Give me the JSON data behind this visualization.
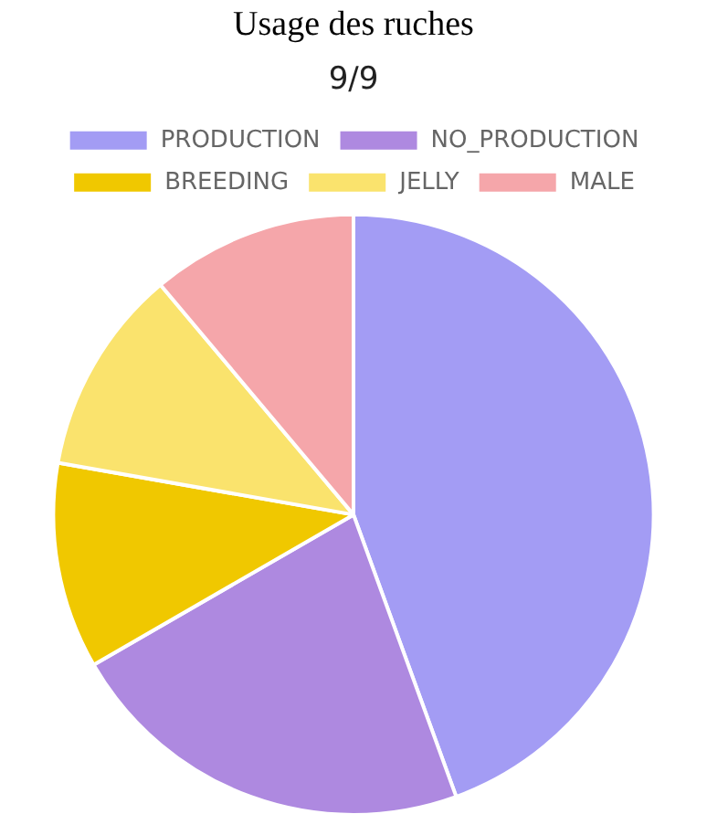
{
  "chart_data": {
    "type": "pie",
    "title": "Usage des ruches",
    "subtitle": "9/9",
    "categories": [
      "PRODUCTION",
      "NO_PRODUCTION",
      "BREEDING",
      "JELLY",
      "MALE"
    ],
    "values": [
      44.44,
      22.22,
      11.11,
      11.11,
      11.12
    ],
    "colors": [
      "#a39cf4",
      "#ae89e0",
      "#f0c800",
      "#fae36d",
      "#f5a6aa"
    ],
    "legend": "top"
  }
}
